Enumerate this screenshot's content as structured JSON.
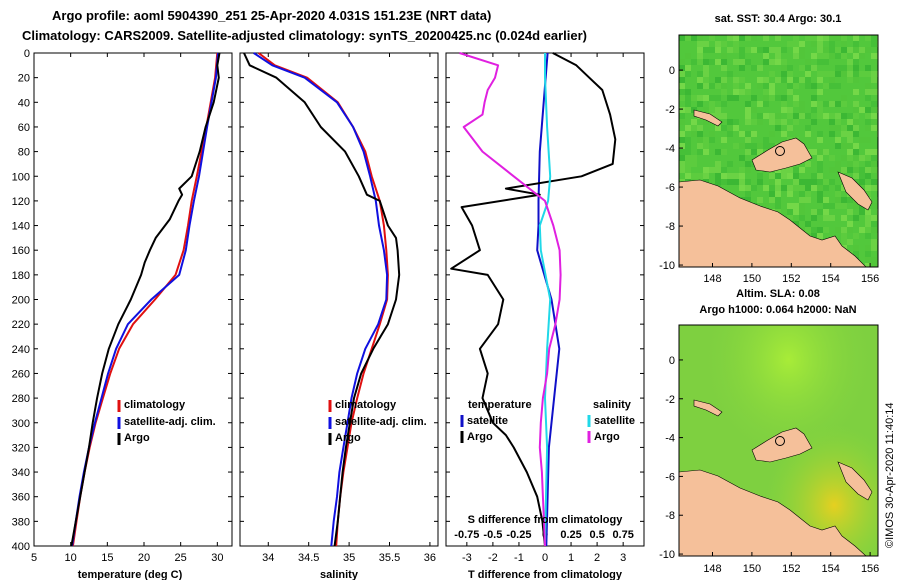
{
  "titles": {
    "line1": "Argo profile: aoml 5904390_251 25-Apr-2020 4.031S 151.23E (NRT data)",
    "line2": "Climatology: CARS2009. Satellite-adjusted climatology: synTS_20200425.nc (0.024d earlier)"
  },
  "colors": {
    "climatology": "#e01010",
    "satellite": "#1010e0",
    "argo": "#000000",
    "t_sat": "#1010c8",
    "s_sat": "#20d8e8",
    "s_argo": "#e020e0",
    "land": "#f5c09a"
  },
  "depth_axis": {
    "ticks": [
      "0",
      "20",
      "40",
      "60",
      "80",
      "100",
      "120",
      "140",
      "160",
      "180",
      "200",
      "220",
      "240",
      "260",
      "280",
      "300",
      "320",
      "340",
      "360",
      "380",
      "400"
    ]
  },
  "legend_clim": {
    "climatology": "climatology",
    "satellite": "satellite-adj. clim.",
    "argo": "Argo"
  },
  "legend_diff": {
    "temperature": "temperature",
    "salinity": "salinity",
    "satellite": "satellite",
    "argo": "Argo"
  },
  "maps": {
    "sst_title": "sat. SST: 30.4 Argo: 30.1",
    "sla_title1": "Altim. SLA: 0.08",
    "sla_title2": "Argo h1000: 0.064 h2000: NaN",
    "lon_ticks": [
      "148",
      "150",
      "152",
      "154",
      "156"
    ],
    "lat_ticks": [
      "0",
      "-2",
      "-4",
      "-6",
      "-8",
      "-10"
    ],
    "credit": "©IMOS 30-Apr-2020 11:40:14"
  },
  "chart_data": [
    {
      "type": "line",
      "title": "",
      "xlabel": "temperature (deg C)",
      "ylabel": "depth",
      "xlim": [
        5,
        32
      ],
      "ylim": [
        400,
        0
      ],
      "x_ticks": [
        "5",
        "10",
        "15",
        "20",
        "25",
        "30"
      ],
      "series": [
        {
          "name": "climatology",
          "depth": [
            0,
            20,
            60,
            100,
            120,
            140,
            160,
            180,
            200,
            220,
            240,
            260,
            280,
            300,
            320,
            340,
            360,
            380,
            400
          ],
          "values": [
            30.0,
            29.7,
            28.5,
            27.2,
            26.5,
            26.0,
            25.4,
            24.3,
            21.5,
            18.5,
            16.6,
            15.4,
            14.4,
            13.4,
            12.6,
            11.9,
            11.3,
            10.8,
            10.3
          ]
        },
        {
          "name": "satellite-adj. clim.",
          "depth": [
            0,
            20,
            60,
            100,
            120,
            140,
            160,
            180,
            200,
            220,
            240,
            260,
            280,
            300,
            320,
            340,
            360,
            380,
            400
          ],
          "values": [
            30.1,
            29.8,
            28.6,
            27.5,
            26.8,
            26.2,
            25.7,
            24.8,
            21.0,
            17.8,
            16.2,
            15.1,
            14.2,
            13.3,
            12.5,
            11.8,
            11.2,
            10.7,
            10.2
          ]
        },
        {
          "name": "Argo",
          "depth": [
            0,
            10,
            20,
            40,
            60,
            80,
            100,
            110,
            115,
            120,
            135,
            150,
            160,
            170,
            180,
            200,
            220,
            240,
            260,
            280,
            300,
            320,
            340,
            360,
            380,
            400
          ],
          "values": [
            30.3,
            30.0,
            30.2,
            29.5,
            28.4,
            27.6,
            26.5,
            24.8,
            25.2,
            24.7,
            23.5,
            21.6,
            20.8,
            20.1,
            19.6,
            18.2,
            16.5,
            15.2,
            14.3,
            13.6,
            13.0,
            12.5,
            11.9,
            11.3,
            10.7,
            10.1
          ]
        }
      ]
    },
    {
      "type": "line",
      "title": "",
      "xlabel": "salinity",
      "ylabel": "depth",
      "xlim": [
        33.65,
        36.1
      ],
      "ylim": [
        400,
        0
      ],
      "x_ticks": [
        "34",
        "34.5",
        "35",
        "35.5",
        "36"
      ],
      "series": [
        {
          "name": "climatology",
          "depth": [
            0,
            10,
            20,
            40,
            60,
            80,
            100,
            120,
            140,
            160,
            180,
            200,
            220,
            240,
            260,
            280,
            300,
            320,
            340,
            360,
            380,
            400
          ],
          "values": [
            33.88,
            34.08,
            34.48,
            34.86,
            35.05,
            35.2,
            35.28,
            35.38,
            35.43,
            35.46,
            35.48,
            35.47,
            35.38,
            35.28,
            35.18,
            35.1,
            35.03,
            34.98,
            34.93,
            34.89,
            34.86,
            34.84
          ]
        },
        {
          "name": "satellite-adj. clim.",
          "depth": [
            0,
            10,
            20,
            40,
            60,
            80,
            100,
            120,
            140,
            160,
            180,
            200,
            220,
            240,
            260,
            280,
            300,
            320,
            340,
            360,
            380,
            400
          ],
          "values": [
            33.82,
            34.05,
            34.45,
            34.85,
            35.05,
            35.18,
            35.26,
            35.33,
            35.37,
            35.43,
            35.47,
            35.46,
            35.36,
            35.2,
            35.1,
            35.03,
            34.98,
            34.93,
            34.88,
            34.85,
            34.81,
            34.78
          ]
        },
        {
          "name": "Argo",
          "depth": [
            0,
            10,
            20,
            40,
            60,
            80,
            100,
            115,
            120,
            140,
            150,
            160,
            180,
            200,
            220,
            240,
            260,
            280,
            300,
            320,
            340,
            360,
            380,
            400
          ],
          "values": [
            33.7,
            33.77,
            34.1,
            34.45,
            34.65,
            34.95,
            35.12,
            35.22,
            35.38,
            35.48,
            35.58,
            35.6,
            35.62,
            35.58,
            35.48,
            35.3,
            35.15,
            35.06,
            35.01,
            34.96,
            34.92,
            34.89,
            34.86,
            34.82
          ]
        }
      ]
    },
    {
      "type": "line",
      "title": "",
      "xlabel": "T difference from climatology",
      "x2label": "S difference from climatology",
      "ylabel": "depth",
      "xlim": [
        -3.8,
        3.8
      ],
      "x2lim": [
        -0.95,
        0.95
      ],
      "ylim": [
        400,
        0
      ],
      "x_ticks": [
        "-3",
        "-2",
        "-1",
        "0",
        "1",
        "2",
        "3"
      ],
      "x2_ticks": [
        "-0.75",
        "-0.5",
        "-0.25",
        "0",
        "0.25",
        "0.5",
        "0.75"
      ],
      "series": [
        {
          "name": "temperature satellite",
          "axis": "T",
          "depth": [
            0,
            40,
            80,
            120,
            140,
            160,
            200,
            240,
            280,
            320,
            360,
            400
          ],
          "values": [
            0.1,
            -0.05,
            -0.2,
            -0.25,
            -0.25,
            -0.3,
            0.25,
            0.55,
            0.35,
            0.15,
            0.1,
            0.05
          ]
        },
        {
          "name": "temperature Argo",
          "axis": "T",
          "depth": [
            0,
            10,
            20,
            30,
            50,
            70,
            90,
            100,
            110,
            115,
            125,
            140,
            160,
            175,
            180,
            200,
            220,
            240,
            260,
            280,
            300,
            310,
            320,
            340,
            360,
            380,
            400
          ],
          "values": [
            0.3,
            1.2,
            1.7,
            2.2,
            2.5,
            2.7,
            2.6,
            1.4,
            -1.5,
            -0.2,
            -3.2,
            -2.8,
            -2.5,
            -3.6,
            -2.2,
            -1.6,
            -1.8,
            -2.5,
            -2.2,
            -2.4,
            -2.0,
            -1.5,
            -1.2,
            -0.7,
            -0.3,
            -0.1,
            0.0
          ]
        },
        {
          "name": "salinity satellite",
          "axis": "S",
          "depth": [
            0,
            20,
            60,
            100,
            120,
            140,
            160,
            200,
            240,
            280,
            320,
            360,
            400
          ],
          "values": [
            0.0,
            0.0,
            0.02,
            0.05,
            0.03,
            -0.05,
            -0.04,
            0.05,
            0.02,
            0.0,
            0.02,
            0.01,
            0.0
          ]
        },
        {
          "name": "salinity Argo",
          "axis": "S",
          "depth": [
            0,
            10,
            20,
            30,
            40,
            50,
            60,
            80,
            100,
            120,
            140,
            160,
            180,
            200,
            220,
            240,
            260,
            280,
            300,
            320,
            340,
            360,
            380,
            400
          ],
          "values": [
            -0.82,
            -0.45,
            -0.48,
            -0.55,
            -0.58,
            -0.6,
            -0.78,
            -0.6,
            -0.3,
            0.0,
            0.08,
            0.14,
            0.15,
            0.14,
            0.1,
            0.04,
            0.02,
            -0.02,
            -0.04,
            -0.05,
            -0.03,
            -0.02,
            -0.01,
            0.0
          ]
        }
      ]
    }
  ]
}
